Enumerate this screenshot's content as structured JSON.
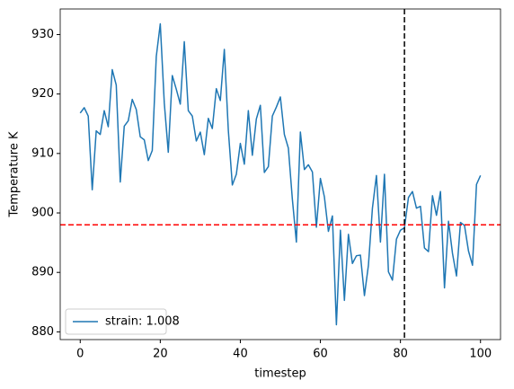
{
  "chart_data": {
    "type": "line",
    "xlabel": "timestep",
    "ylabel": "Temperature K",
    "x": [
      0,
      1,
      2,
      3,
      4,
      5,
      6,
      7,
      8,
      9,
      10,
      11,
      12,
      13,
      14,
      15,
      16,
      17,
      18,
      19,
      20,
      21,
      22,
      23,
      24,
      25,
      26,
      27,
      28,
      29,
      30,
      31,
      32,
      33,
      34,
      35,
      36,
      37,
      38,
      39,
      40,
      41,
      42,
      43,
      44,
      45,
      46,
      47,
      48,
      49,
      50,
      51,
      52,
      53,
      54,
      55,
      56,
      57,
      58,
      59,
      60,
      61,
      62,
      63,
      64,
      65,
      66,
      67,
      68,
      69,
      70,
      71,
      72,
      73,
      74,
      75,
      76,
      77,
      78,
      79,
      80,
      81,
      82,
      83,
      84,
      85,
      86,
      87,
      88,
      89,
      90,
      91,
      92,
      93,
      94,
      95,
      96,
      97,
      98,
      99,
      100
    ],
    "series": [
      {
        "name": "strain: 1.008",
        "color": "#1f77b4",
        "values": [
          916.8,
          917.7,
          916.3,
          903.9,
          913.8,
          913.2,
          917.2,
          914.5,
          924.1,
          921.5,
          905.2,
          914.6,
          915.5,
          919.1,
          917.4,
          912.8,
          912.3,
          908.8,
          910.5,
          926.3,
          931.8,
          918.5,
          910.2,
          923.1,
          920.8,
          918.3,
          928.8,
          917.2,
          916.3,
          912.1,
          913.6,
          909.8,
          915.9,
          914.2,
          920.9,
          918.9,
          927.5,
          913.9,
          904.7,
          906.5,
          911.7,
          908.2,
          917.2,
          909.7,
          915.8,
          918.1,
          906.8,
          907.8,
          916.3,
          917.8,
          919.5,
          913.2,
          910.9,
          902.3,
          895.1,
          913.6,
          907.3,
          908.1,
          906.9,
          897.6,
          905.8,
          902.7,
          896.9,
          899.5,
          881.2,
          897.1,
          885.3,
          896.4,
          891.5,
          892.8,
          892.9,
          886.1,
          891.2,
          900.8,
          906.3,
          895.1,
          906.5,
          890.1,
          888.7,
          895.6,
          897.1,
          897.5,
          902.6,
          903.6,
          900.8,
          901.1,
          894.1,
          893.5,
          902.9,
          899.6,
          903.6,
          887.4,
          898.6,
          893.2,
          889.4,
          898.4,
          897.9,
          893.6,
          891.2,
          904.8,
          906.3
        ]
      }
    ],
    "hlines": [
      {
        "value": 898,
        "color": "#ff0000"
      }
    ],
    "vlines": [
      {
        "value": 81,
        "color": "#000000"
      }
    ],
    "xlim": [
      -5,
      105
    ],
    "xticks": [
      0,
      20,
      40,
      60,
      80,
      100
    ],
    "ylim": [
      878.7,
      934.3
    ],
    "yticks": [
      880,
      890,
      900,
      910,
      920,
      930
    ],
    "legend": "lower left",
    "grid": false
  }
}
